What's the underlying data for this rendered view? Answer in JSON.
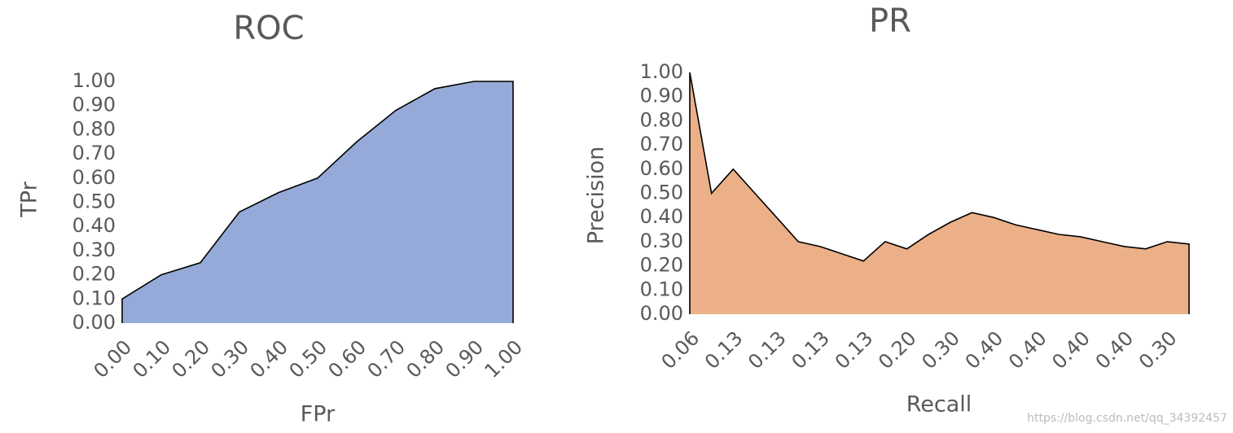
{
  "chart_data": [
    {
      "type": "area",
      "title": "ROC",
      "x_label": "FPr",
      "y_label": "TPr",
      "color": "#95aad8",
      "categories": [
        "0.00",
        "0.10",
        "0.20",
        "0.30",
        "0.40",
        "0.50",
        "0.60",
        "0.70",
        "0.80",
        "0.90",
        "1.00"
      ],
      "values": [
        0.1,
        0.2,
        0.25,
        0.46,
        0.54,
        0.6,
        0.75,
        0.88,
        0.97,
        1.0,
        1.0
      ],
      "ylim": [
        0,
        1
      ],
      "yticks": [
        {
          "value": 0,
          "label": "0.00"
        },
        {
          "value": 0.1,
          "label": "0.10"
        },
        {
          "value": 0.2,
          "label": "0.20"
        },
        {
          "value": 0.3,
          "label": "0.30"
        },
        {
          "value": 0.4,
          "label": "0.40"
        },
        {
          "value": 0.5,
          "label": "0.50"
        },
        {
          "value": 0.6,
          "label": "0.60"
        },
        {
          "value": 0.7,
          "label": "0.70"
        },
        {
          "value": 0.8,
          "label": "0.80"
        },
        {
          "value": 0.9,
          "label": "0.90"
        },
        {
          "value": 1,
          "label": "1.00"
        }
      ]
    },
    {
      "type": "area",
      "title": "PR",
      "x_label": "Recall",
      "y_label": "Precision",
      "color": "#ebb088",
      "categories": [
        "0.06",
        null,
        "0.13",
        null,
        "0.13",
        null,
        "0.13",
        null,
        "0.13",
        null,
        "0.20",
        null,
        "0.30",
        null,
        "0.40",
        null,
        "0.40",
        null,
        "0.40",
        null,
        "0.40",
        null,
        "0.30",
        null
      ],
      "values": [
        1.0,
        0.5,
        0.6,
        0.5,
        0.4,
        0.3,
        0.28,
        0.25,
        0.22,
        0.3,
        0.27,
        0.33,
        0.38,
        0.42,
        0.4,
        0.37,
        0.35,
        0.33,
        0.32,
        0.3,
        0.28,
        0.27,
        0.3,
        0.29
      ],
      "ylim": [
        0,
        1
      ],
      "yticks": [
        {
          "value": 0,
          "label": "0.00"
        },
        {
          "value": 0.1,
          "label": "0.10"
        },
        {
          "value": 0.2,
          "label": "0.20"
        },
        {
          "value": 0.3,
          "label": "0.30"
        },
        {
          "value": 0.4,
          "label": "0.40"
        },
        {
          "value": 0.5,
          "label": "0.50"
        },
        {
          "value": 0.6,
          "label": "0.60"
        },
        {
          "value": 0.7,
          "label": "0.70"
        },
        {
          "value": 0.8,
          "label": "0.80"
        },
        {
          "value": 0.9,
          "label": "0.90"
        },
        {
          "value": 1,
          "label": "1.00"
        }
      ]
    }
  ],
  "watermark": "https://blog.csdn.net/qq_34392457"
}
